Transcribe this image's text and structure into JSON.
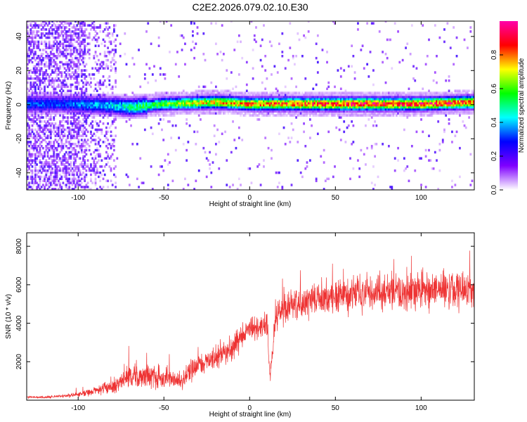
{
  "title": "C2E2.2026.079.02.10.E30",
  "chart_data": [
    {
      "type": "heatmap",
      "xlabel": "Height of straight line (km)",
      "ylabel": "Frequency (Hz)",
      "xlim": [
        -130,
        131
      ],
      "ylim": [
        -50,
        49
      ],
      "xticks": [
        -100,
        -50,
        0,
        50,
        100
      ],
      "xtick_labels": [
        "-100",
        "-50",
        "0",
        "50",
        "100"
      ],
      "yticks": [
        -40,
        -20,
        0,
        20,
        40
      ],
      "ytick_labels": [
        "-40",
        "-20",
        "0",
        "20",
        "40"
      ],
      "colorbar": {
        "label": "Normalized spectral amplitude",
        "range": [
          0,
          1
        ],
        "ticks": [
          0.0,
          0.2,
          0.4,
          0.6,
          0.8
        ],
        "tick_labels": [
          "0.0",
          "0.2",
          "0.4",
          "0.6",
          "0.8"
        ],
        "colors": [
          "#ffffff",
          "#7f00ff",
          "#0000ff",
          "#00ffff",
          "#00ff00",
          "#ffff00",
          "#ff0000",
          "#ff00aa"
        ]
      },
      "ridge": {
        "center_frequency_hz": [
          {
            "x": -110,
            "y": 0
          },
          {
            "x": -80,
            "y": -1
          },
          {
            "x": -70,
            "y": -2
          },
          {
            "x": -50,
            "y": 0
          },
          {
            "x": -20,
            "y": 1
          },
          {
            "x": 0,
            "y": 0
          },
          {
            "x": 50,
            "y": 0
          },
          {
            "x": 100,
            "y": 0
          },
          {
            "x": 131,
            "y": 1
          }
        ],
        "peak_amplitude": [
          {
            "x": -110,
            "y": 0.35
          },
          {
            "x": -80,
            "y": 0.45
          },
          {
            "x": -60,
            "y": 0.6
          },
          {
            "x": -30,
            "y": 0.75
          },
          {
            "x": 0,
            "y": 0.85
          },
          {
            "x": 50,
            "y": 0.95
          },
          {
            "x": 100,
            "y": 0.95
          },
          {
            "x": 131,
            "y": 0.9
          }
        ]
      }
    },
    {
      "type": "line",
      "xlabel": "Height of straight line (km)",
      "ylabel": "SNR (10 * v/v)",
      "xlim": [
        -130,
        131
      ],
      "ylim": [
        0,
        8700
      ],
      "xticks": [
        -100,
        -50,
        0,
        50,
        100
      ],
      "xtick_labels": [
        "-100",
        "-50",
        "0",
        "50",
        "100"
      ],
      "yticks": [
        2000,
        4000,
        6000,
        8000
      ],
      "ytick_labels": [
        "2000",
        "4000",
        "6000",
        "8000"
      ],
      "color": "#ee3333",
      "series": [
        {
          "x": [
            -130,
            -120,
            -110,
            -100,
            -90,
            -80,
            -75,
            -70,
            -60,
            -50,
            -45,
            -40,
            -35,
            -30,
            -25,
            -20,
            -15,
            -10,
            -5,
            0,
            5,
            10,
            12,
            15,
            20,
            30,
            40,
            50,
            60,
            70,
            80,
            90,
            100,
            110,
            120,
            131
          ],
          "y": [
            150,
            150,
            200,
            300,
            500,
            700,
            1000,
            1300,
            1300,
            1200,
            1100,
            900,
            1500,
            1800,
            2100,
            2300,
            2500,
            2700,
            3300,
            3600,
            3700,
            3900,
            1200,
            4300,
            4800,
            5100,
            5300,
            5400,
            5500,
            5600,
            5600,
            5600,
            5700,
            5700,
            5700,
            5600
          ],
          "noise": [
            50,
            60,
            80,
            150,
            250,
            450,
            550,
            600,
            600,
            600,
            500,
            450,
            600,
            600,
            600,
            650,
            600,
            600,
            700,
            700,
            700,
            700,
            300,
            800,
            900,
            900,
            900,
            950,
            950,
            950,
            950,
            950,
            1000,
            1000,
            1000,
            1000
          ]
        }
      ]
    }
  ]
}
